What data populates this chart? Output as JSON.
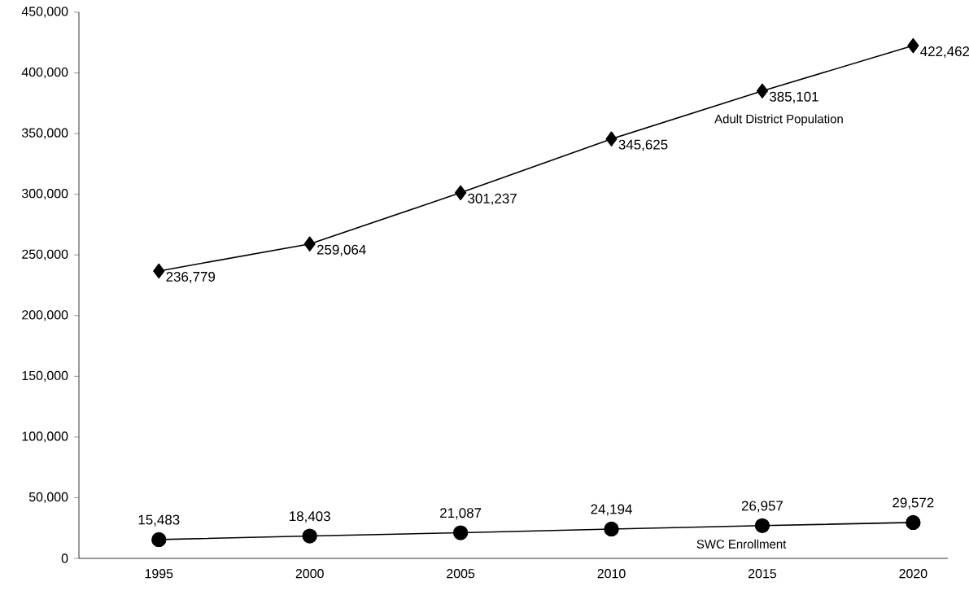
{
  "chart_data": {
    "type": "line",
    "categories": [
      "1995",
      "2000",
      "2005",
      "2010",
      "2015",
      "2020"
    ],
    "ylim": [
      0,
      450000
    ],
    "yticks": [
      {
        "value": 0,
        "label": "0"
      },
      {
        "value": 50000,
        "label": "50,000"
      },
      {
        "value": 100000,
        "label": "100,000"
      },
      {
        "value": 150000,
        "label": "150,000"
      },
      {
        "value": 200000,
        "label": "200,000"
      },
      {
        "value": 250000,
        "label": "250,000"
      },
      {
        "value": 300000,
        "label": "300,000"
      },
      {
        "value": 350000,
        "label": "350,000"
      },
      {
        "value": 400000,
        "label": "400,000"
      },
      {
        "value": 450000,
        "label": "450,000"
      }
    ],
    "series": [
      {
        "name": "Adult District Population",
        "color": "#000000",
        "marker": "diamond",
        "values": [
          236779,
          259064,
          301237,
          345625,
          385101,
          422462
        ],
        "value_labels": [
          "236,779",
          "259,064",
          "301,237",
          "345,625",
          "385,101",
          "422,462"
        ]
      },
      {
        "name": "SWC Enrollment",
        "color": "#000000",
        "marker": "circle",
        "values": [
          15483,
          18403,
          21087,
          24194,
          26957,
          29572
        ],
        "value_labels": [
          "15,483",
          "18,403",
          "21,087",
          "24,194",
          "26,957",
          "29,572"
        ]
      }
    ]
  }
}
